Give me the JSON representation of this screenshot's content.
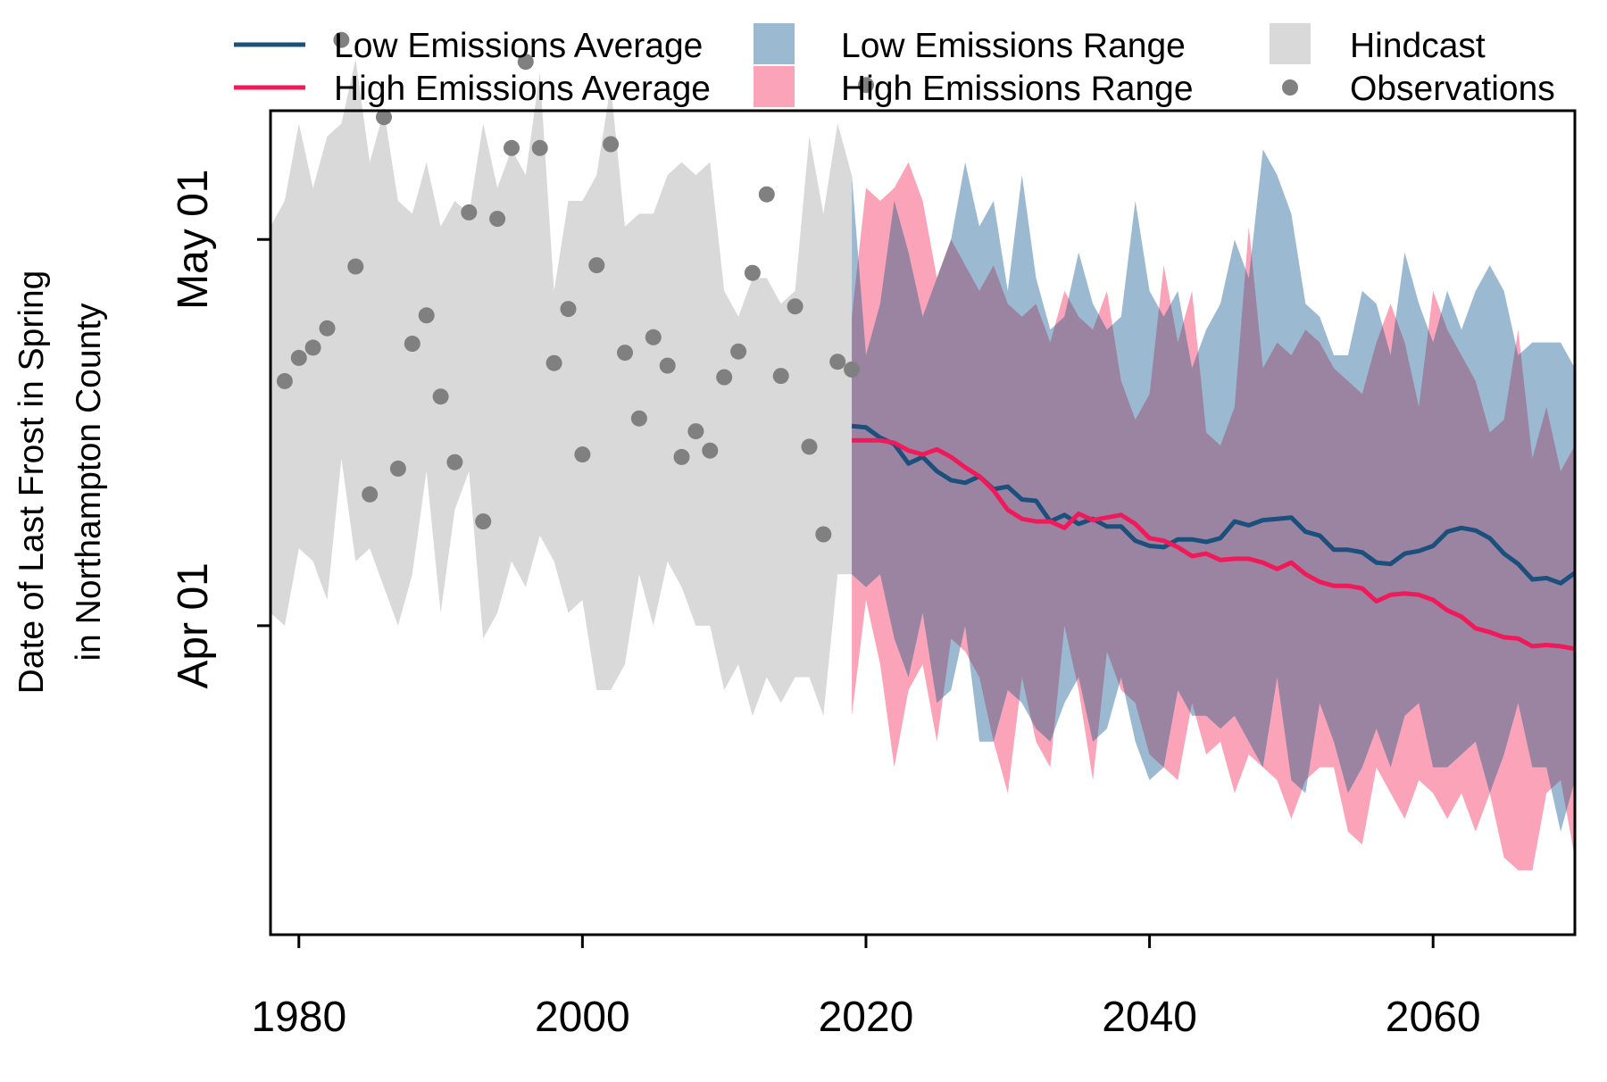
{
  "colors": {
    "low_avg": "#1b4f7c",
    "high_avg": "#f0195a",
    "low_range": "#9bb9d0",
    "high_range": "#fba3b9",
    "overlap": "#9b84a2",
    "hindcast": "#d9d9d9",
    "observations": "#808080"
  },
  "chart_data": {
    "type": "line",
    "ylabel_line1": "Date of Last Frost in Spring",
    "ylabel_line2": "in Northampton County",
    "xlabel": "",
    "xlim": [
      1978,
      2070
    ],
    "ylim_day_of_year": [
      67,
      131
    ],
    "x_ticks": [
      1980,
      2000,
      2020,
      2040,
      2060
    ],
    "y_ticks": [
      {
        "label": "Apr 01",
        "day": 91
      },
      {
        "label": "May 01",
        "day": 121
      }
    ],
    "grid": false,
    "legend_position": "top",
    "legend": [
      {
        "label": "Low Emissions Average",
        "symbol": "line",
        "color_key": "low_avg"
      },
      {
        "label": "High Emissions Average",
        "symbol": "line",
        "color_key": "high_avg"
      },
      {
        "label": "Low Emissions Range",
        "symbol": "box",
        "color_key": "low_range"
      },
      {
        "label": "High Emissions Range",
        "symbol": "box",
        "color_key": "high_range"
      },
      {
        "label": "Hindcast",
        "symbol": "box",
        "color_key": "hindcast"
      },
      {
        "label": "Observations",
        "symbol": "dot",
        "color_key": "observations"
      }
    ],
    "observations": [
      [
        1979,
        110
      ],
      [
        1980,
        111.8
      ],
      [
        1981,
        112.6
      ],
      [
        1982,
        114.1
      ],
      [
        1983,
        136.5
      ],
      [
        1984,
        118.9
      ],
      [
        1985,
        101.2
      ],
      [
        1986,
        130.5
      ],
      [
        1987,
        103.2
      ],
      [
        1988,
        112.9
      ],
      [
        1989,
        115.1
      ],
      [
        1990,
        108.8
      ],
      [
        1991,
        103.7
      ],
      [
        1992,
        123.1
      ],
      [
        1993,
        99.1
      ],
      [
        1994,
        122.6
      ],
      [
        1995,
        128.1
      ],
      [
        1996,
        134.8
      ],
      [
        1997,
        128.1
      ],
      [
        1998,
        111.4
      ],
      [
        1999,
        115.6
      ],
      [
        2000,
        104.3
      ],
      [
        2001,
        119
      ],
      [
        2002,
        128.4
      ],
      [
        2003,
        112.2
      ],
      [
        2004,
        107.1
      ],
      [
        2005,
        113.4
      ],
      [
        2006,
        111.2
      ],
      [
        2007,
        104.1
      ],
      [
        2008,
        106.1
      ],
      [
        2009,
        104.6
      ],
      [
        2010,
        110.3
      ],
      [
        2011,
        112.3
      ],
      [
        2012,
        118.4
      ],
      [
        2013,
        124.5
      ],
      [
        2014,
        110.4
      ],
      [
        2015,
        115.8
      ],
      [
        2016,
        104.9
      ],
      [
        2017,
        98.1
      ],
      [
        2018,
        111.5
      ],
      [
        2019,
        110.9
      ],
      [
        2020,
        133
      ]
    ],
    "hindcast_range": {
      "x": [
        1978,
        1979,
        1980,
        1981,
        1982,
        1983,
        1984,
        1985,
        1986,
        1987,
        1988,
        1989,
        1990,
        1991,
        1992,
        1993,
        1994,
        1995,
        1996,
        1997,
        1998,
        1999,
        2000,
        2001,
        2002,
        2003,
        2004,
        2005,
        2006,
        2007,
        2008,
        2009,
        2010,
        2011,
        2012,
        2013,
        2014,
        2015,
        2016,
        2017,
        2018,
        2019
      ],
      "upper": [
        122,
        124,
        130,
        125,
        129,
        130,
        135,
        127,
        131,
        124,
        123,
        127,
        122,
        124,
        123,
        130,
        125,
        128,
        126,
        134,
        117,
        124,
        124,
        126,
        133,
        122,
        123,
        123,
        126,
        127,
        126,
        127,
        117,
        115,
        118,
        118,
        116,
        117,
        129,
        123,
        130,
        126
      ],
      "lower": [
        92,
        91,
        97,
        96,
        93,
        104,
        96,
        97,
        94,
        91,
        95,
        103,
        92,
        100,
        103,
        90,
        92,
        96,
        94,
        98,
        96,
        92,
        93,
        86,
        86,
        88,
        95,
        91,
        96,
        94,
        91,
        91,
        86,
        88,
        84,
        87,
        85,
        87,
        87,
        84,
        95,
        95
      ]
    },
    "series": [
      {
        "name": "Low Emissions Average",
        "color_key": "low_avg",
        "x": [
          2019,
          2020,
          2021,
          2022,
          2023,
          2024,
          2025,
          2026,
          2027,
          2028,
          2029,
          2030,
          2031,
          2032,
          2033,
          2034,
          2035,
          2036,
          2037,
          2038,
          2039,
          2040,
          2041,
          2042,
          2043,
          2044,
          2045,
          2046,
          2047,
          2048,
          2049,
          2050,
          2051,
          2052,
          2053,
          2054,
          2055,
          2056,
          2057,
          2058,
          2059,
          2060,
          2061,
          2062,
          2063,
          2064,
          2065,
          2066,
          2067,
          2068,
          2069,
          2070
        ],
        "values": [
          106.5,
          106.4,
          105.6,
          105.1,
          103.6,
          104.1,
          103,
          102.3,
          102.1,
          102.6,
          101.6,
          101.8,
          100.8,
          100.7,
          99.1,
          99.6,
          98.9,
          99.3,
          98.7,
          98.7,
          97.6,
          97.2,
          97.1,
          97.7,
          97.7,
          97.5,
          97.8,
          99.1,
          98.8,
          99.2,
          99.3,
          99.4,
          98.3,
          98,
          96.9,
          96.9,
          96.7,
          95.9,
          95.8,
          96.6,
          96.8,
          97.2,
          98.3,
          98.6,
          98.4,
          97.8,
          96.6,
          95.8,
          94.6,
          94.7,
          94.3,
          95.1
        ]
      },
      {
        "name": "High Emissions Average",
        "color_key": "high_avg",
        "x": [
          2019,
          2020,
          2021,
          2022,
          2023,
          2024,
          2025,
          2026,
          2027,
          2028,
          2029,
          2030,
          2031,
          2032,
          2033,
          2034,
          2035,
          2036,
          2037,
          2038,
          2039,
          2040,
          2041,
          2042,
          2043,
          2044,
          2045,
          2046,
          2047,
          2048,
          2049,
          2050,
          2051,
          2052,
          2053,
          2054,
          2055,
          2056,
          2057,
          2058,
          2059,
          2060,
          2061,
          2062,
          2063,
          2064,
          2065,
          2066,
          2067,
          2068,
          2069,
          2070
        ],
        "values": [
          105.4,
          105.4,
          105.4,
          105.2,
          104.6,
          104.3,
          104.7,
          104.1,
          103.3,
          102.6,
          101.5,
          100,
          99.3,
          99.1,
          99.1,
          98.6,
          99.7,
          99.2,
          99.4,
          99.6,
          98.9,
          97.8,
          97.6,
          97.1,
          96.4,
          96.6,
          96.1,
          96.2,
          96.2,
          95.9,
          95.4,
          95.9,
          95,
          94.4,
          94.1,
          94.1,
          93.9,
          92.9,
          93.4,
          93.5,
          93.4,
          93,
          92.2,
          91.7,
          90.8,
          90.5,
          90.1,
          90,
          89.4,
          89.5,
          89.4,
          89.2
        ]
      }
    ],
    "ranges": [
      {
        "name": "High Emissions Range",
        "color_key": "high_range",
        "x": [
          2019,
          2020,
          2021,
          2022,
          2023,
          2024,
          2025,
          2026,
          2027,
          2028,
          2029,
          2030,
          2031,
          2032,
          2033,
          2034,
          2035,
          2036,
          2037,
          2038,
          2039,
          2040,
          2041,
          2042,
          2043,
          2044,
          2045,
          2046,
          2047,
          2048,
          2049,
          2050,
          2051,
          2052,
          2053,
          2054,
          2055,
          2056,
          2057,
          2058,
          2059,
          2060,
          2061,
          2062,
          2063,
          2064,
          2065,
          2066,
          2067,
          2068,
          2069,
          2070
        ],
        "upper": [
          115,
          125,
          124,
          125,
          127,
          124,
          118,
          121,
          119,
          117,
          119,
          116,
          115,
          116,
          113,
          117,
          115,
          114,
          117,
          110,
          107,
          109,
          119,
          113,
          117,
          106,
          105,
          108,
          122,
          111,
          113,
          112,
          114,
          113,
          111,
          110,
          109,
          113,
          116,
          113,
          108,
          117,
          114,
          112,
          110,
          106,
          107,
          114,
          104,
          108,
          103,
          105
        ],
        "lower": [
          84,
          93,
          88,
          80,
          86,
          88,
          82,
          90,
          89,
          87,
          82,
          78,
          87,
          82,
          80,
          91,
          86,
          79,
          89,
          86,
          85,
          81,
          80,
          79,
          85,
          81,
          82,
          78,
          81,
          80,
          79,
          76,
          79,
          80,
          80,
          75,
          74,
          80,
          78,
          76,
          79,
          78,
          76,
          78,
          75,
          78,
          73,
          72,
          72,
          78,
          79,
          73
        ]
      },
      {
        "name": "Low Emissions Range",
        "color_key": "low_range",
        "x": [
          2019,
          2020,
          2021,
          2022,
          2023,
          2024,
          2025,
          2026,
          2027,
          2028,
          2029,
          2030,
          2031,
          2032,
          2033,
          2034,
          2035,
          2036,
          2037,
          2038,
          2039,
          2040,
          2041,
          2042,
          2043,
          2044,
          2045,
          2046,
          2047,
          2048,
          2049,
          2050,
          2051,
          2052,
          2053,
          2054,
          2055,
          2056,
          2057,
          2058,
          2059,
          2060,
          2061,
          2062,
          2063,
          2064,
          2065,
          2066,
          2067,
          2068,
          2069,
          2070
        ],
        "upper": [
          126,
          112,
          116,
          124,
          120,
          115,
          118,
          121,
          127,
          122,
          124,
          117,
          126,
          118,
          114,
          115,
          120,
          116,
          114,
          115,
          124,
          117,
          115,
          117,
          111,
          114,
          116,
          121,
          118,
          128,
          126,
          123,
          116,
          115,
          112,
          112,
          117,
          116,
          112,
          120,
          116,
          113,
          117,
          114,
          117,
          119,
          117,
          112,
          113,
          113,
          113,
          111
        ],
        "lower": [
          95,
          94,
          95,
          90,
          87,
          92,
          85,
          86,
          91,
          82,
          82,
          86,
          85,
          83,
          82,
          85,
          87,
          82,
          83,
          87,
          82,
          79,
          80,
          86,
          84,
          84,
          83,
          84,
          82,
          80,
          87,
          79,
          78,
          85,
          82,
          78,
          80,
          83,
          80,
          84,
          85,
          80,
          80,
          81,
          82,
          78,
          81,
          85,
          80,
          80,
          75,
          79
        ]
      }
    ]
  }
}
